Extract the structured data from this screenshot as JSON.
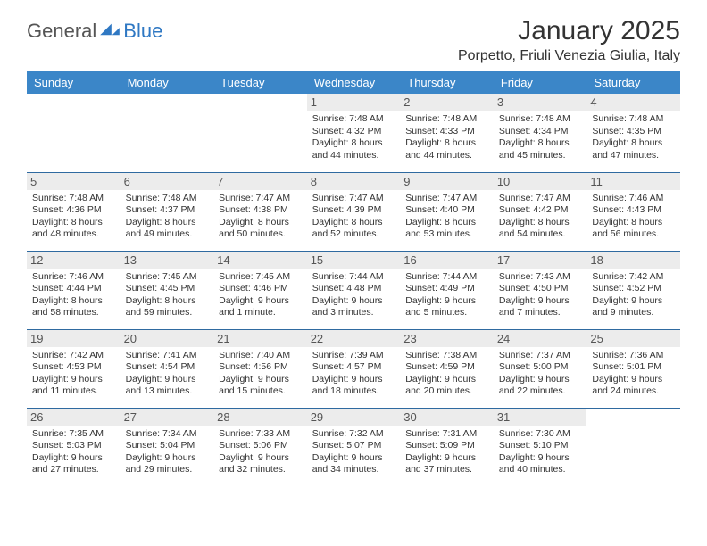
{
  "logo": {
    "general": "General",
    "blue": "Blue"
  },
  "header": {
    "monthTitle": "January 2025",
    "location": "Porpetto, Friuli Venezia Giulia, Italy"
  },
  "colors": {
    "headerBg": "#3b86c8",
    "headerText": "#ffffff",
    "rowDivider": "#2f6aa0",
    "dayBg": "#ececec",
    "brandBlue": "#2f78c3"
  },
  "dayNames": [
    "Sunday",
    "Monday",
    "Tuesday",
    "Wednesday",
    "Thursday",
    "Friday",
    "Saturday"
  ],
  "startWeekdayIndex": 3,
  "daysInMonth": 31,
  "days": {
    "1": {
      "sunrise": "7:48 AM",
      "sunset": "4:32 PM",
      "daylight": "8 hours and 44 minutes."
    },
    "2": {
      "sunrise": "7:48 AM",
      "sunset": "4:33 PM",
      "daylight": "8 hours and 44 minutes."
    },
    "3": {
      "sunrise": "7:48 AM",
      "sunset": "4:34 PM",
      "daylight": "8 hours and 45 minutes."
    },
    "4": {
      "sunrise": "7:48 AM",
      "sunset": "4:35 PM",
      "daylight": "8 hours and 47 minutes."
    },
    "5": {
      "sunrise": "7:48 AM",
      "sunset": "4:36 PM",
      "daylight": "8 hours and 48 minutes."
    },
    "6": {
      "sunrise": "7:48 AM",
      "sunset": "4:37 PM",
      "daylight": "8 hours and 49 minutes."
    },
    "7": {
      "sunrise": "7:47 AM",
      "sunset": "4:38 PM",
      "daylight": "8 hours and 50 minutes."
    },
    "8": {
      "sunrise": "7:47 AM",
      "sunset": "4:39 PM",
      "daylight": "8 hours and 52 minutes."
    },
    "9": {
      "sunrise": "7:47 AM",
      "sunset": "4:40 PM",
      "daylight": "8 hours and 53 minutes."
    },
    "10": {
      "sunrise": "7:47 AM",
      "sunset": "4:42 PM",
      "daylight": "8 hours and 54 minutes."
    },
    "11": {
      "sunrise": "7:46 AM",
      "sunset": "4:43 PM",
      "daylight": "8 hours and 56 minutes."
    },
    "12": {
      "sunrise": "7:46 AM",
      "sunset": "4:44 PM",
      "daylight": "8 hours and 58 minutes."
    },
    "13": {
      "sunrise": "7:45 AM",
      "sunset": "4:45 PM",
      "daylight": "8 hours and 59 minutes."
    },
    "14": {
      "sunrise": "7:45 AM",
      "sunset": "4:46 PM",
      "daylight": "9 hours and 1 minute."
    },
    "15": {
      "sunrise": "7:44 AM",
      "sunset": "4:48 PM",
      "daylight": "9 hours and 3 minutes."
    },
    "16": {
      "sunrise": "7:44 AM",
      "sunset": "4:49 PM",
      "daylight": "9 hours and 5 minutes."
    },
    "17": {
      "sunrise": "7:43 AM",
      "sunset": "4:50 PM",
      "daylight": "9 hours and 7 minutes."
    },
    "18": {
      "sunrise": "7:42 AM",
      "sunset": "4:52 PM",
      "daylight": "9 hours and 9 minutes."
    },
    "19": {
      "sunrise": "7:42 AM",
      "sunset": "4:53 PM",
      "daylight": "9 hours and 11 minutes."
    },
    "20": {
      "sunrise": "7:41 AM",
      "sunset": "4:54 PM",
      "daylight": "9 hours and 13 minutes."
    },
    "21": {
      "sunrise": "7:40 AM",
      "sunset": "4:56 PM",
      "daylight": "9 hours and 15 minutes."
    },
    "22": {
      "sunrise": "7:39 AM",
      "sunset": "4:57 PM",
      "daylight": "9 hours and 18 minutes."
    },
    "23": {
      "sunrise": "7:38 AM",
      "sunset": "4:59 PM",
      "daylight": "9 hours and 20 minutes."
    },
    "24": {
      "sunrise": "7:37 AM",
      "sunset": "5:00 PM",
      "daylight": "9 hours and 22 minutes."
    },
    "25": {
      "sunrise": "7:36 AM",
      "sunset": "5:01 PM",
      "daylight": "9 hours and 24 minutes."
    },
    "26": {
      "sunrise": "7:35 AM",
      "sunset": "5:03 PM",
      "daylight": "9 hours and 27 minutes."
    },
    "27": {
      "sunrise": "7:34 AM",
      "sunset": "5:04 PM",
      "daylight": "9 hours and 29 minutes."
    },
    "28": {
      "sunrise": "7:33 AM",
      "sunset": "5:06 PM",
      "daylight": "9 hours and 32 minutes."
    },
    "29": {
      "sunrise": "7:32 AM",
      "sunset": "5:07 PM",
      "daylight": "9 hours and 34 minutes."
    },
    "30": {
      "sunrise": "7:31 AM",
      "sunset": "5:09 PM",
      "daylight": "9 hours and 37 minutes."
    },
    "31": {
      "sunrise": "7:30 AM",
      "sunset": "5:10 PM",
      "daylight": "9 hours and 40 minutes."
    }
  },
  "labels": {
    "sunrise": "Sunrise:",
    "sunset": "Sunset:",
    "daylight": "Daylight:"
  }
}
